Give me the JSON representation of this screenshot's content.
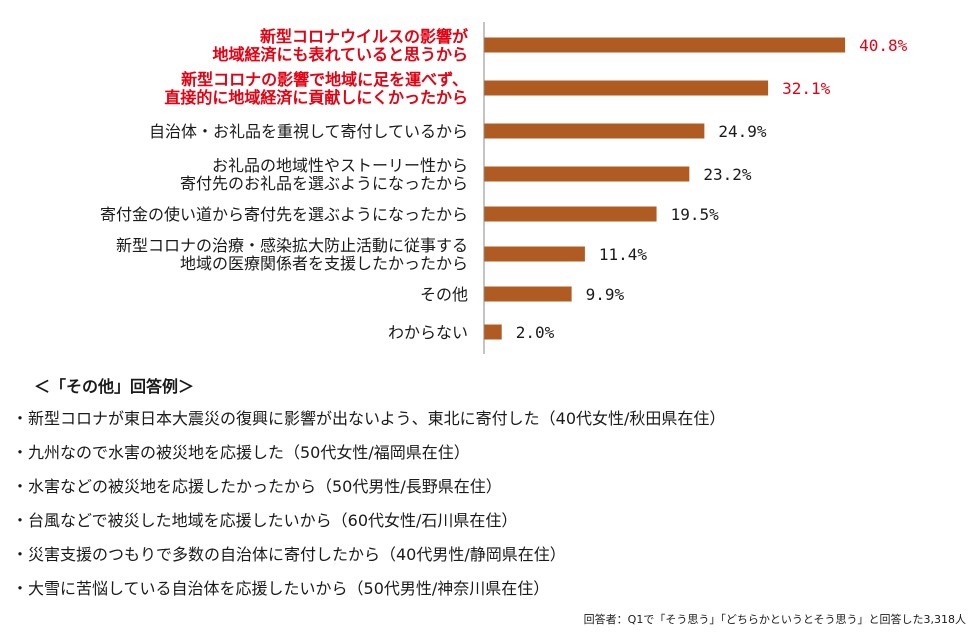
{
  "chart_data": {
    "type": "bar",
    "orientation": "horizontal",
    "categories": [
      [
        "新型コロナウイルスの影響が",
        "地域経済にも表れていると思うから"
      ],
      [
        "新型コロナの影響で地域に足を運べず、",
        "直接的に地域経済に貢献しにくかったから"
      ],
      [
        "自治体・お礼品を重視して寄付しているから"
      ],
      [
        "お礼品の地域性やストーリー性から",
        "寄付先のお礼品を選ぶようになったから"
      ],
      [
        "寄付金の使い道から寄付先を選ぶようになったから"
      ],
      [
        "新型コロナの治療・感染拡大防止活動に従事する",
        "地域の医療関係者を支援したかったから"
      ],
      [
        "その他"
      ],
      [
        "わからない"
      ]
    ],
    "values": [
      40.8,
      32.1,
      24.9,
      23.2,
      19.5,
      11.4,
      9.9,
      2.0
    ],
    "value_labels": [
      "40.8%",
      "32.1%",
      "24.9%",
      "23.2%",
      "19.5%",
      "11.4%",
      "9.9%",
      "2.0%"
    ],
    "highlighted": [
      true,
      true,
      false,
      false,
      false,
      false,
      false,
      false
    ],
    "xlim": [
      0,
      50
    ],
    "grid": false,
    "colors": {
      "bar": "#b05b22",
      "highlight_text": "#e60012",
      "axis": "#888888"
    }
  },
  "other_section": {
    "title": "＜「その他」回答例＞",
    "items": [
      "・新型コロナが東日本大震災の復興に影響が出ないよう、東北に寄付した（40代女性/秋田県在住）",
      "・九州なので水害の被災地を応援した（50代女性/福岡県在住）",
      "・水害などの被災地を応援したかったから（50代男性/長野県在住）",
      "・台風などで被災した地域を応援したいから（60代女性/石川県在住）",
      "・災害支援のつもりで多数の自治体に寄付したから（40代男性/静岡県在住）",
      "・大雪に苦悩している自治体を応援したいから（50代男性/神奈川県在住）"
    ]
  },
  "footnote": "回答者：Q1で「そう思う」「どちらかというとそう思う」と回答した3,318人"
}
